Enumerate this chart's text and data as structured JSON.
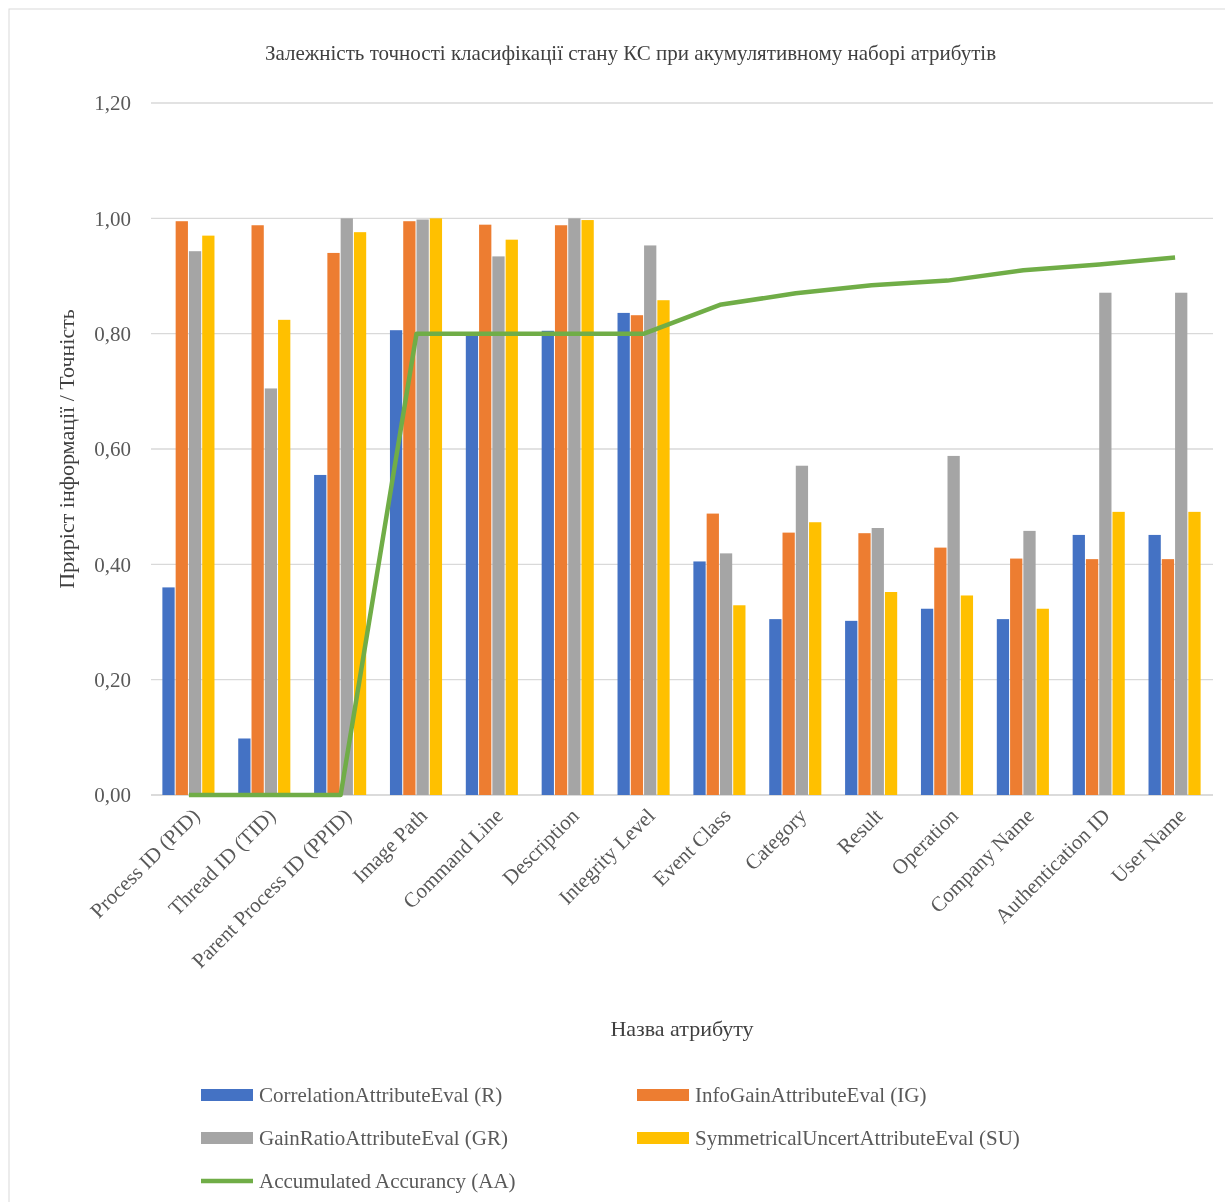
{
  "chart_data": {
    "type": "bar",
    "title": "Залежність точності класифікації стану КС при акумулятивному наборі атрибутів",
    "xlabel": "Назва атрибуту",
    "ylabel": "Приріст інформації / Точність",
    "categories": [
      "Process ID (PID)",
      "Thread ID (TID)",
      "Parent Process ID (PPID)",
      "Image Path",
      "Command Line",
      "Description",
      "Integrity Level",
      "Event Class",
      "Category",
      "Result",
      "Operation",
      "Company Name",
      "Authentication ID",
      "User Name"
    ],
    "series": [
      {
        "name": "CorrelationAttributeEval (R)",
        "color": "#4472c4",
        "values": [
          0.36,
          0.098,
          0.555,
          0.806,
          0.8,
          0.805,
          0.836,
          0.405,
          0.305,
          0.302,
          0.323,
          0.305,
          0.451,
          0.451
        ]
      },
      {
        "name": "InfoGainAttributeEval (IG)",
        "color": "#ed7d31",
        "values": [
          0.995,
          0.988,
          0.94,
          0.995,
          0.989,
          0.988,
          0.832,
          0.488,
          0.455,
          0.454,
          0.429,
          0.41,
          0.409,
          0.409
        ]
      },
      {
        "name": "GainRatioAttributeEval (GR)",
        "color": "#a5a5a5",
        "values": [
          0.943,
          0.705,
          1.0,
          0.998,
          0.934,
          1.0,
          0.953,
          0.419,
          0.571,
          0.463,
          0.588,
          0.458,
          0.871,
          0.871
        ]
      },
      {
        "name": "SymmetricalUncertAttributeEval (SU)",
        "color": "#ffc000",
        "values": [
          0.97,
          0.824,
          0.976,
          1.0,
          0.963,
          0.997,
          0.858,
          0.329,
          0.473,
          0.352,
          0.346,
          0.323,
          0.491,
          0.491
        ]
      },
      {
        "name": "Accumulated Accurancy (AA)",
        "color": "#70ad47",
        "type": "line",
        "values": [
          0,
          0,
          0,
          0.8,
          0.8,
          0.8,
          0.8,
          0.85,
          0.87,
          0.884,
          0.892,
          0.91,
          0.92,
          0.932
        ]
      }
    ],
    "ylim": [
      0,
      1.2
    ],
    "yticks": [
      {
        "value": 0,
        "label": "0,00"
      },
      {
        "value": 0.2,
        "label": "0,20"
      },
      {
        "value": 0.4,
        "label": "0,40"
      },
      {
        "value": 0.6,
        "label": "0,60"
      },
      {
        "value": 0.8,
        "label": "0,80"
      },
      {
        "value": 1.0,
        "label": "1,00"
      },
      {
        "value": 1.2,
        "label": "1,20"
      }
    ],
    "grid": "y",
    "legend": "bottom",
    "marker": "none",
    "line_style": "solid"
  }
}
